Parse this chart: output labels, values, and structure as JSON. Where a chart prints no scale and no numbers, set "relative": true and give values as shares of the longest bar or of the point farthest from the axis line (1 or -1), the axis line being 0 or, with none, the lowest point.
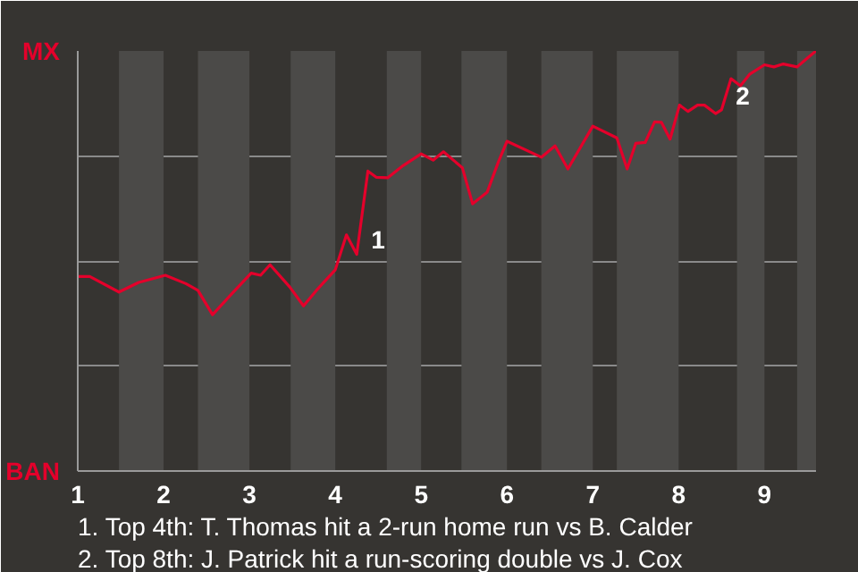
{
  "chart_data": {
    "type": "line",
    "relative": true,
    "x": [
      1.0,
      1.14,
      1.48,
      1.71,
      2.02,
      2.26,
      2.4,
      2.57,
      2.79,
      3.02,
      3.13,
      3.24,
      3.47,
      3.63,
      3.78,
      4.0,
      4.13,
      4.25,
      4.38,
      4.48,
      4.61,
      4.79,
      5.0,
      5.14,
      5.26,
      5.48,
      5.6,
      5.77,
      5.9,
      6.0,
      6.4,
      6.56,
      6.71,
      7.0,
      7.28,
      7.4,
      7.5,
      7.61,
      7.72,
      7.8,
      7.9,
      8.01,
      8.11,
      8.22,
      8.3,
      8.43,
      8.5,
      8.61,
      8.72,
      8.83,
      9.0,
      9.11,
      9.22,
      9.38,
      9.5,
      9.6
    ],
    "series": [
      {
        "color": "#e4002b",
        "values": [
          0.463,
          0.463,
          0.426,
          0.449,
          0.466,
          0.446,
          0.43,
          0.372,
          0.421,
          0.471,
          0.466,
          0.491,
          0.438,
          0.393,
          0.43,
          0.479,
          0.562,
          0.516,
          0.714,
          0.699,
          0.698,
          0.727,
          0.755,
          0.74,
          0.76,
          0.722,
          0.636,
          0.664,
          0.736,
          0.785,
          0.747,
          0.774,
          0.719,
          0.821,
          0.793,
          0.719,
          0.78,
          0.782,
          0.831,
          0.83,
          0.79,
          0.871,
          0.856,
          0.871,
          0.871,
          0.851,
          0.86,
          0.934,
          0.917,
          0.945,
          0.967,
          0.962,
          0.969,
          0.962,
          0.983,
          1
        ]
      }
    ],
    "xlim": [
      1,
      9.6
    ],
    "xticks": [
      1,
      2,
      3,
      4,
      5,
      6,
      7,
      8,
      9
    ],
    "grid": "y",
    "marker": "none",
    "line_style": "solid",
    "bands": [
      {
        "axis": "x",
        "from": 1.48,
        "to": 2.0,
        "color": "#4b4a48"
      },
      {
        "axis": "x",
        "from": 2.4,
        "to": 3.0,
        "color": "#4b4a48"
      },
      {
        "axis": "x",
        "from": 3.48,
        "to": 4.0,
        "color": "#4b4a48"
      },
      {
        "axis": "x",
        "from": 4.6,
        "to": 5.0,
        "color": "#4b4a48"
      },
      {
        "axis": "x",
        "from": 5.47,
        "to": 6.0,
        "color": "#4b4a48"
      },
      {
        "axis": "x",
        "from": 6.4,
        "to": 7.0,
        "color": "#4b4a48"
      },
      {
        "axis": "x",
        "from": 7.28,
        "to": 8.0,
        "color": "#4b4a48"
      },
      {
        "axis": "x",
        "from": 8.68,
        "to": 9.0,
        "color": "#4b4a48"
      },
      {
        "axis": "x",
        "from": 9.38,
        "to": 9.6,
        "color": "#4b4a48"
      }
    ],
    "annotations": [
      {
        "text": "1",
        "x": 4.25,
        "y": 0.516
      },
      {
        "text": "2",
        "x": 8.5,
        "y": 0.86
      },
      "MX",
      "BAN",
      "1. Top 4th: T. Thomas hit a 2-run home run vs B. Calder",
      "2. Top 8th: J. Patrick hit a run-scoring double vs J. Cox"
    ]
  }
}
